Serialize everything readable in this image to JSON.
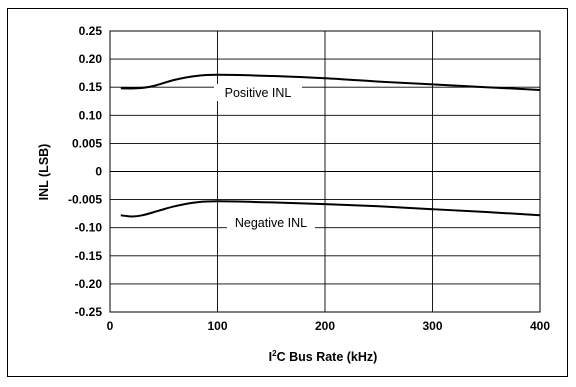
{
  "chart_data": {
    "type": "line",
    "title": "",
    "xlabel_prefix": "I",
    "xlabel_superscript": "2",
    "xlabel_suffix": "C Bus Rate (kHz)",
    "ylabel": "INL (LSB)",
    "xlim": [
      0,
      400
    ],
    "x_ticks": [
      "0",
      "100",
      "200",
      "300",
      "400"
    ],
    "y_ticks": [
      "0.25",
      "0.20",
      "0.15",
      "0.10",
      "0.005",
      "0",
      "-0.005",
      "-0.10",
      "-0.15",
      "-0.20",
      "-0.25"
    ],
    "grid": true,
    "legend": "none",
    "series": [
      {
        "name": "Positive INL",
        "color": "#000000",
        "x": [
          10,
          25,
          40,
          60,
          80,
          100,
          150,
          200,
          250,
          300,
          350,
          400
        ],
        "y": [
          0.148,
          0.148,
          0.152,
          0.163,
          0.17,
          0.172,
          0.17,
          0.166,
          0.16,
          0.155,
          0.15,
          0.145
        ]
      },
      {
        "name": "Negative INL",
        "color": "#000000",
        "x": [
          10,
          20,
          30,
          45,
          60,
          80,
          100,
          150,
          200,
          250,
          300,
          350,
          400
        ],
        "y": [
          -0.078,
          -0.08,
          -0.078,
          -0.07,
          -0.062,
          -0.055,
          -0.053,
          -0.055,
          -0.058,
          -0.062,
          -0.067,
          -0.072,
          -0.078
        ]
      }
    ]
  }
}
